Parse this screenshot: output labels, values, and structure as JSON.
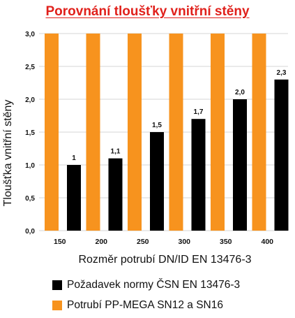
{
  "colors": {
    "title": "#e0201b",
    "series_black": "#000000",
    "series_orange": "#f7931e",
    "grid": "#d4d4d4",
    "text": "#111111"
  },
  "chart_data": {
    "type": "bar",
    "title": "Porovnání tloušťky vnitřní stěny",
    "xlabel": "Rozměr potrubí DN/ID EN 13476-3",
    "ylabel": "Tloušťka vnitřní stěny",
    "categories": [
      "150",
      "200",
      "250",
      "300",
      "350",
      "400"
    ],
    "ylim": [
      0,
      3.0
    ],
    "yticks": [
      "0,0",
      "0,5",
      "1,0",
      "1,5",
      "2,0",
      "2,5",
      "3,0"
    ],
    "grid": true,
    "legend_position": "bottom",
    "series": [
      {
        "name": "Požadavek normy ČSN EN 13476-3",
        "color": "#000000",
        "values": [
          1.0,
          1.1,
          1.5,
          1.7,
          2.0,
          2.3
        ],
        "data_labels": [
          "1",
          "1,1",
          "1,5",
          "1,7",
          "2,0",
          "2,3"
        ]
      },
      {
        "name": "Potrubí PP-MEGA SN12 a SN16",
        "color": "#f7931e",
        "values": [
          3.0,
          3.0,
          3.0,
          3.0,
          3.0,
          3.0
        ],
        "data_labels": []
      }
    ]
  }
}
